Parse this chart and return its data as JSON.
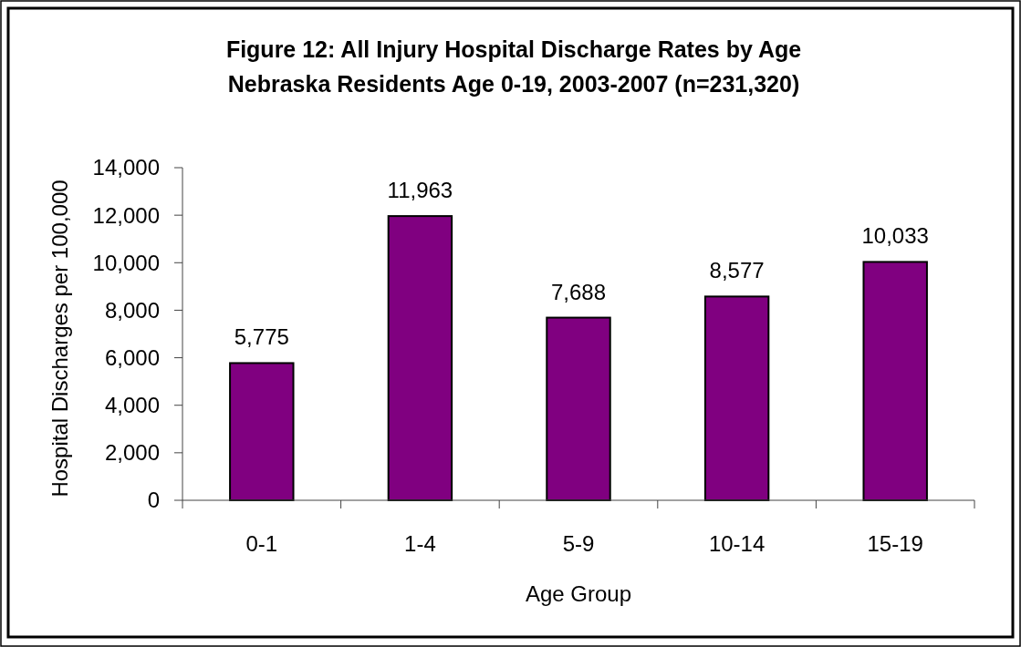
{
  "chart_data": {
    "type": "bar",
    "title": "Figure 12: All Injury Hospital Discharge Rates by Age",
    "subtitle": "Nebraska Residents Age 0-19, 2003-2007 (n=231,320)",
    "xlabel": "Age Group",
    "ylabel": "Hospital Discharges per 100,000",
    "categories": [
      "0-1",
      "1-4",
      "5-9",
      "10-14",
      "15-19"
    ],
    "values": [
      5775,
      11963,
      7688,
      8577,
      10033
    ],
    "value_labels": [
      "5,775",
      "11,963",
      "7,688",
      "8,577",
      "10,033"
    ],
    "color": "#800080",
    "ylim": [
      0,
      14000
    ],
    "yticks": [
      0,
      {
        "value": 2000,
        "label": "2,000"
      },
      {
        "value": 4000,
        "label": "4,000"
      },
      {
        "value": 6000,
        "label": "6,000"
      },
      {
        "value": 8000,
        "label": "8,000"
      },
      {
        "value": 10000,
        "label": "10,000"
      },
      {
        "value": 12000,
        "label": "12,000"
      },
      {
        "value": 14000,
        "label": "14,000"
      }
    ]
  }
}
